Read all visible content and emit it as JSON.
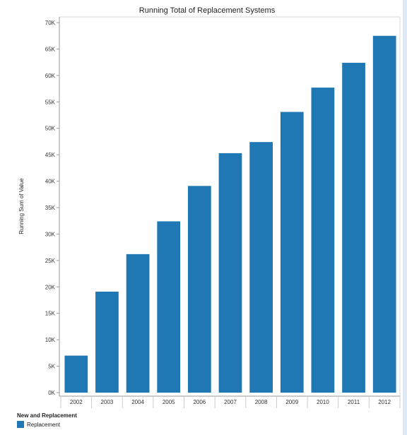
{
  "chart_data": {
    "type": "bar",
    "title": "Running Total of Replacement Systems",
    "ylabel": "Running Sum of Value",
    "xlabel": "",
    "categories": [
      "2002",
      "2003",
      "2004",
      "2005",
      "2006",
      "2007",
      "2008",
      "2009",
      "2010",
      "2011",
      "2012"
    ],
    "series": [
      {
        "name": "Replacement",
        "values": [
          7000,
          19100,
          26200,
          32400,
          39100,
          45300,
          47400,
          53100,
          57700,
          62400,
          67500
        ]
      }
    ],
    "ylim": [
      0,
      70000
    ],
    "yticks": [
      {
        "value": 0,
        "label": "0K"
      },
      {
        "value": 5000,
        "label": "5K"
      },
      {
        "value": 10000,
        "label": "10K"
      },
      {
        "value": 15000,
        "label": "15K"
      },
      {
        "value": 20000,
        "label": "20K"
      },
      {
        "value": 25000,
        "label": "25K"
      },
      {
        "value": 30000,
        "label": "30K"
      },
      {
        "value": 35000,
        "label": "35K"
      },
      {
        "value": 40000,
        "label": "40K"
      },
      {
        "value": 45000,
        "label": "45K"
      },
      {
        "value": 50000,
        "label": "50K"
      },
      {
        "value": 55000,
        "label": "55K"
      },
      {
        "value": 60000,
        "label": "60K"
      },
      {
        "value": 65000,
        "label": "65K"
      },
      {
        "value": 70000,
        "label": "70K"
      }
    ],
    "grid": false,
    "legend": {
      "title": "New and Replacement",
      "placement": "bottom-left"
    },
    "colors": {
      "bar": "#1f77b4",
      "axis": "#999999"
    }
  }
}
